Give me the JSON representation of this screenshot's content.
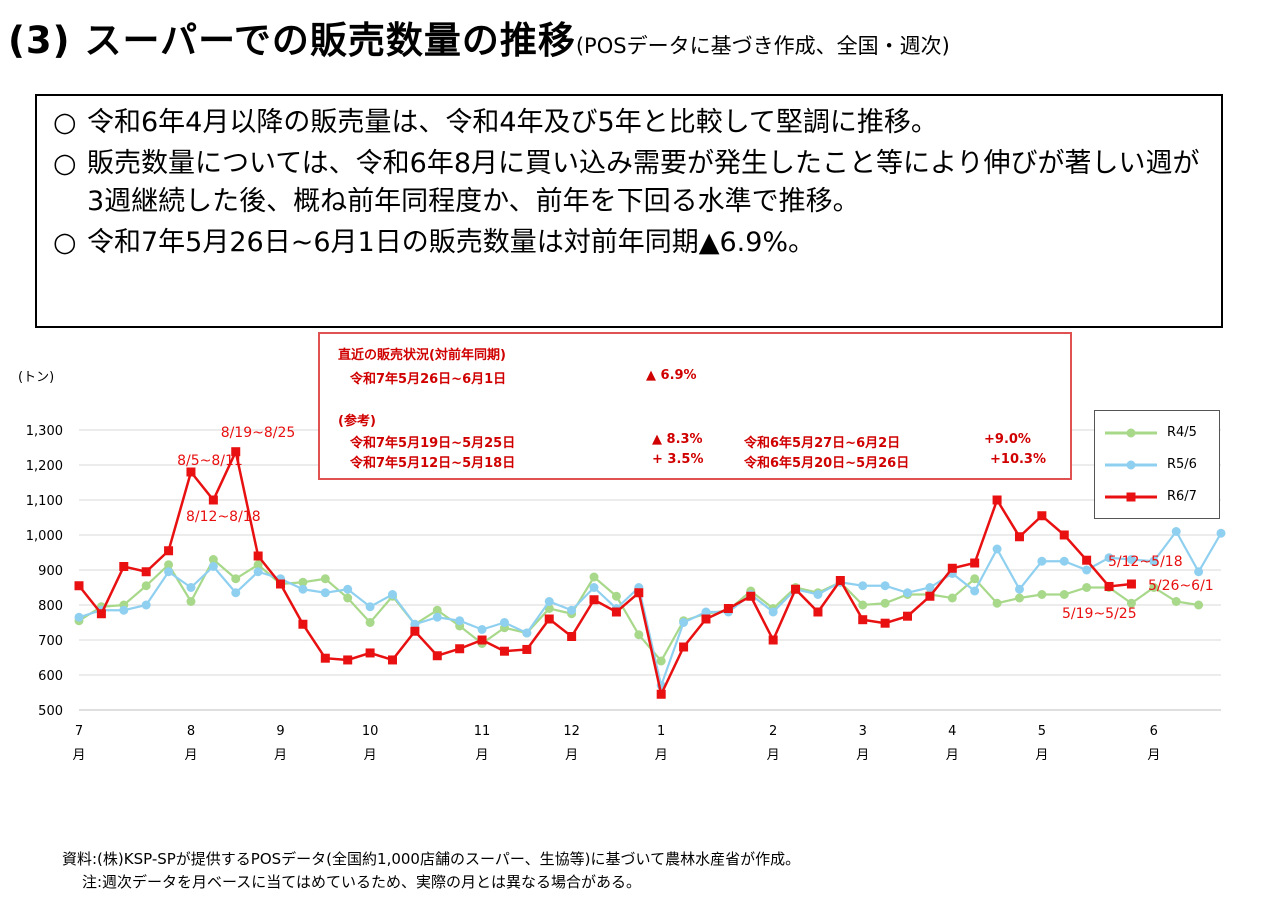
{
  "header": {
    "title": "(3) スーパーでの販売数量の推移",
    "subtitle": "(POSデータに基づき作成、全国・週次)"
  },
  "summary": {
    "bullet_mark": "○",
    "items": [
      "令和6年4月以降の販売量は、令和4年及び5年と比較して堅調に推移。",
      "販売数量については、令和6年8月に買い込み需要が発生したこと等により伸びが著しい週が3週継続した後、概ね前年同程度か、前年を下回る水準で推移。",
      "令和7年5月26日~6月1日の販売数量は対前年同期▲6.9%。"
    ]
  },
  "recent_box": {
    "heading": "直近の販売状況(対前年同期)",
    "current_period": "令和7年5月26日~6月1日",
    "current_change": "▲ 6.9%",
    "reference_heading": "(参考)",
    "rows": [
      {
        "period": "令和7年5月19日~5月25日",
        "change": "▲ 8.3%",
        "prev_period": "令和6年5月27日~6月2日",
        "prev_change": "+9.0%"
      },
      {
        "period": "令和7年5月12日~5月18日",
        "change": "+ 3.5%",
        "prev_period": "令和6年5月20日~5月26日",
        "prev_change": "+10.3%"
      }
    ]
  },
  "footnote": {
    "source": "資料:(株)KSP-SPが提供するPOSデータ(全国約1,000店舗のスーパー、生協等)に基づいて農林水産省が作成。",
    "note": "注:週次データを月ベースに当てはめているため、実際の月とは異なる場合がある。"
  },
  "chart_data": {
    "type": "line",
    "ylabel": "(トン)",
    "ylim": [
      500,
      1300
    ],
    "yticks": [
      "1,300",
      "1,200",
      "1,100",
      "1,000",
      "900",
      "800",
      "700",
      "600",
      "500"
    ],
    "month_unit": "月",
    "month_labels": [
      {
        "label": "7",
        "week": 0
      },
      {
        "label": "8",
        "week": 5
      },
      {
        "label": "9",
        "week": 9
      },
      {
        "label": "10",
        "week": 13
      },
      {
        "label": "11",
        "week": 18
      },
      {
        "label": "12",
        "week": 22
      },
      {
        "label": "1",
        "week": 26
      },
      {
        "label": "2",
        "week": 31
      },
      {
        "label": "3",
        "week": 35
      },
      {
        "label": "4",
        "week": 39
      },
      {
        "label": "5",
        "week": 43
      },
      {
        "label": "6",
        "week": 48
      }
    ],
    "colors": {
      "R4/5": "#a8d88a",
      "R5/6": "#8fd0f0",
      "R6/7": "#e81010"
    },
    "series": [
      {
        "name": "R4/5",
        "values": [
          755,
          795,
          800,
          855,
          915,
          810,
          930,
          875,
          915,
          860,
          865,
          875,
          820,
          750,
          825,
          745,
          785,
          740,
          690,
          735,
          720,
          790,
          775,
          880,
          825,
          715,
          640,
          755,
          775,
          785,
          840,
          790,
          850,
          835,
          865,
          800,
          805,
          830,
          830,
          820,
          875,
          805,
          820,
          830,
          830,
          850,
          850,
          805,
          850,
          810,
          800
        ]
      },
      {
        "name": "R5/6",
        "values": [
          765,
          785,
          785,
          800,
          895,
          850,
          910,
          835,
          895,
          875,
          845,
          835,
          845,
          795,
          830,
          745,
          765,
          755,
          730,
          750,
          720,
          810,
          785,
          850,
          790,
          850,
          570,
          750,
          780,
          780,
          830,
          780,
          845,
          830,
          865,
          855,
          855,
          835,
          850,
          890,
          840,
          960,
          845,
          925,
          925,
          900,
          935,
          930,
          925,
          1010,
          895,
          1005
        ]
      },
      {
        "name": "R6/7",
        "values": [
          855,
          775,
          910,
          895,
          955,
          1180,
          1100,
          1238,
          940,
          860,
          745,
          648,
          643,
          663,
          643,
          725,
          655,
          675,
          700,
          668,
          673,
          760,
          710,
          815,
          780,
          835,
          545,
          680,
          760,
          790,
          825,
          700,
          845,
          780,
          870,
          758,
          748,
          768,
          825,
          905,
          920,
          1100,
          995,
          1055,
          1000,
          928,
          853,
          860
        ]
      }
    ],
    "annotations": [
      {
        "text": "8/19~8/25",
        "week": 7
      },
      {
        "text": "8/5~8/11",
        "week": 5
      },
      {
        "text": "8/12~8/18",
        "week": 6
      },
      {
        "text": "5/12~5/18",
        "week": 45
      },
      {
        "text": "5/26~6/1",
        "week": 47
      },
      {
        "text": "5/19~5/25",
        "week": 46
      }
    ],
    "legend": {
      "placement": "right",
      "entries": [
        "R4/5",
        "R5/6",
        "R6/7"
      ]
    }
  }
}
